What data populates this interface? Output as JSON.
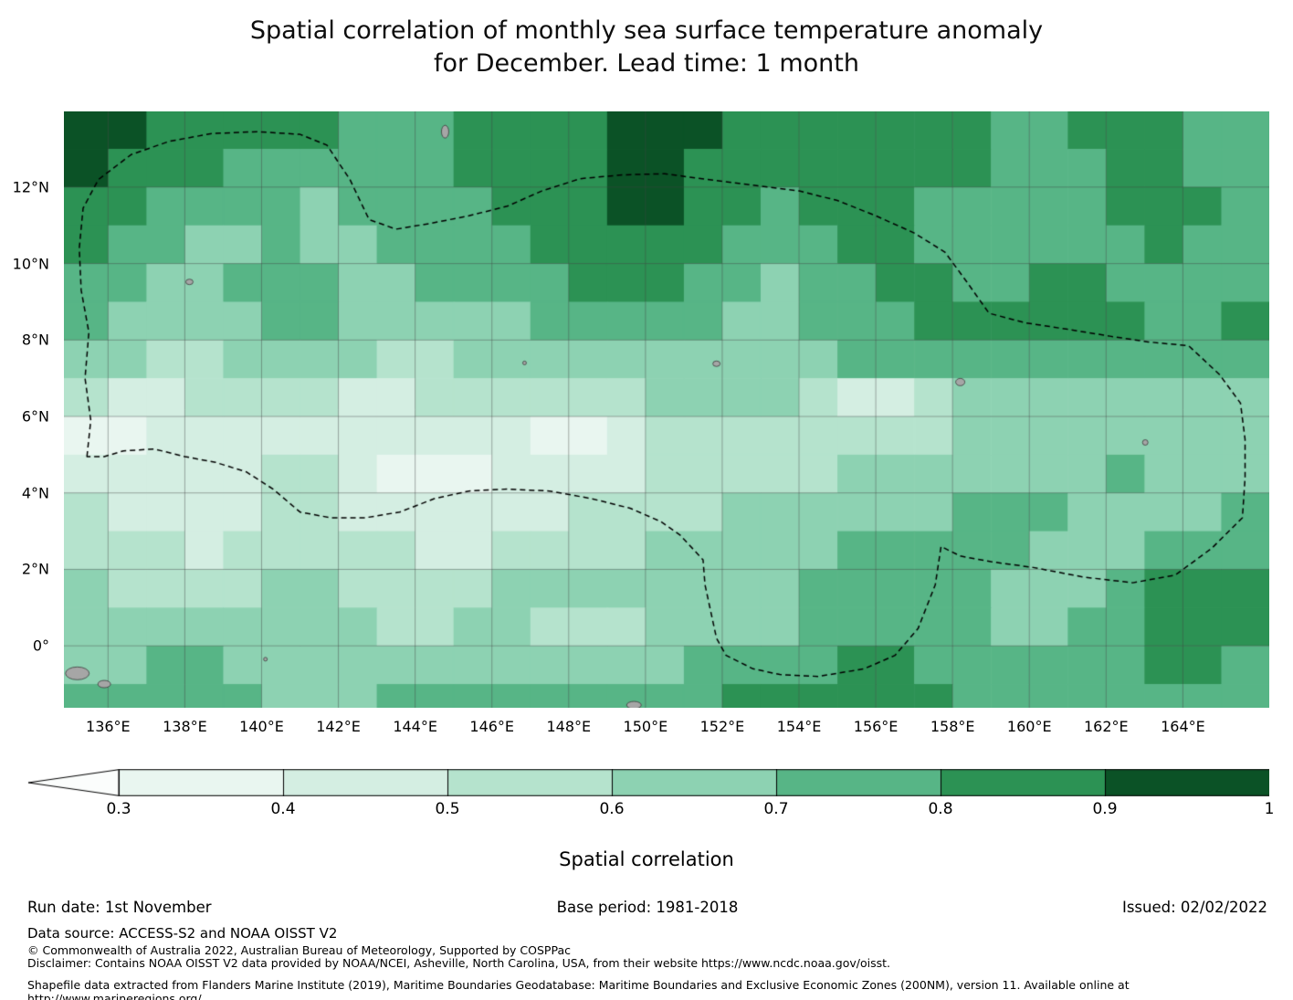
{
  "title": {
    "line1": "Spatial correlation of monthly sea surface temperature anomaly",
    "line2": "for December. Lead time: 1 month"
  },
  "footer": {
    "run_date": "Run date: 1st November",
    "base_period": "Base period: 1981-2018",
    "issued": "Issued: 02/02/2022",
    "data_source": "Data source: ACCESS-S2 and NOAA OISST V2",
    "copyright": "© Commonwealth of Australia 2022, Australian Bureau of Meteorology, Supported by COSPPac",
    "disclaimer": "Disclaimer: Contains NOAA OISST V2 data provided by NOAA/NCEI, Asheville, North Carolina, USA, from their website https://www.ncdc.noaa.gov/oisst.",
    "shapefile": "Shapefile data extracted from Flanders Marine Institute (2019), Maritime Boundaries Geodatabase: Maritime Boundaries and Exclusive Economic Zones (200NM), version 11. Available online at http://www.marineregions.org/."
  },
  "chart_data": {
    "type": "heatmap",
    "title": "Spatial correlation of monthly sea surface temperature anomaly for December. Lead time: 1 month",
    "xlabel": "",
    "ylabel": "",
    "extent": {
      "lon_min": 134.85,
      "lon_max": 166.25,
      "lat_min": -1.62,
      "lat_max": 13.98
    },
    "grid": {
      "lon_start": 135,
      "lat_start": 14,
      "cell_deg": 1
    },
    "grid_line_color": "rgba(70,70,70,0.55)",
    "x_ticks": [
      {
        "lon": 136,
        "label": "136°E"
      },
      {
        "lon": 138,
        "label": "138°E"
      },
      {
        "lon": 140,
        "label": "140°E"
      },
      {
        "lon": 142,
        "label": "142°E"
      },
      {
        "lon": 144,
        "label": "144°E"
      },
      {
        "lon": 146,
        "label": "146°E"
      },
      {
        "lon": 148,
        "label": "148°E"
      },
      {
        "lon": 150,
        "label": "150°E"
      },
      {
        "lon": 152,
        "label": "152°E"
      },
      {
        "lon": 154,
        "label": "154°E"
      },
      {
        "lon": 156,
        "label": "156°E"
      },
      {
        "lon": 158,
        "label": "158°E"
      },
      {
        "lon": 160,
        "label": "160°E"
      },
      {
        "lon": 162,
        "label": "162°E"
      },
      {
        "lon": 164,
        "label": "164°E"
      }
    ],
    "y_ticks": [
      {
        "lat": 12,
        "label": "12°N"
      },
      {
        "lat": 10,
        "label": "10°N"
      },
      {
        "lat": 8,
        "label": "8°N"
      },
      {
        "lat": 6,
        "label": "6°N"
      },
      {
        "lat": 4,
        "label": "4°N"
      },
      {
        "lat": 2,
        "label": "2°N"
      },
      {
        "lat": 0,
        "label": "0°"
      }
    ],
    "colorbar": {
      "label": "Spatial correlation",
      "ticks": [
        "0.3",
        "0.4",
        "0.5",
        "0.6",
        "0.7",
        "0.8",
        "0.9",
        "1"
      ],
      "tick_values": [
        0.3,
        0.4,
        0.5,
        0.6,
        0.7,
        0.8,
        0.9,
        1.0
      ],
      "below_color": "#fbfdfc",
      "segment_colors": [
        "#e9f6f0",
        "#d4eee2",
        "#b5e3cd",
        "#8dd2b2",
        "#57b586",
        "#2c9254",
        "#0b5226"
      ]
    },
    "values": [
      [
        0.95,
        0.95,
        0.85,
        0.85,
        0.85,
        0.85,
        0.85,
        0.75,
        0.75,
        0.75,
        0.85,
        0.85,
        0.85,
        0.85,
        0.95,
        0.95,
        0.95,
        0.85,
        0.85,
        0.85,
        0.85,
        0.85,
        0.85,
        0.85,
        0.75,
        0.75,
        0.85,
        0.85,
        0.85,
        0.75,
        0.75
      ],
      [
        0.95,
        0.85,
        0.85,
        0.85,
        0.75,
        0.75,
        0.75,
        0.75,
        0.75,
        0.75,
        0.85,
        0.85,
        0.85,
        0.85,
        0.95,
        0.95,
        0.85,
        0.85,
        0.85,
        0.85,
        0.85,
        0.85,
        0.85,
        0.85,
        0.75,
        0.75,
        0.75,
        0.85,
        0.85,
        0.75,
        0.75
      ],
      [
        0.85,
        0.85,
        0.75,
        0.75,
        0.75,
        0.75,
        0.65,
        0.75,
        0.75,
        0.75,
        0.75,
        0.85,
        0.85,
        0.85,
        0.95,
        0.95,
        0.85,
        0.85,
        0.75,
        0.85,
        0.85,
        0.85,
        0.75,
        0.75,
        0.75,
        0.75,
        0.75,
        0.85,
        0.85,
        0.85,
        0.75
      ],
      [
        0.85,
        0.75,
        0.75,
        0.65,
        0.65,
        0.75,
        0.65,
        0.65,
        0.75,
        0.75,
        0.75,
        0.75,
        0.85,
        0.85,
        0.85,
        0.85,
        0.85,
        0.75,
        0.75,
        0.75,
        0.85,
        0.85,
        0.75,
        0.75,
        0.75,
        0.75,
        0.75,
        0.75,
        0.85,
        0.75,
        0.75
      ],
      [
        0.75,
        0.75,
        0.65,
        0.65,
        0.75,
        0.75,
        0.75,
        0.65,
        0.65,
        0.75,
        0.75,
        0.75,
        0.75,
        0.85,
        0.85,
        0.85,
        0.75,
        0.75,
        0.65,
        0.75,
        0.75,
        0.85,
        0.85,
        0.75,
        0.75,
        0.85,
        0.85,
        0.75,
        0.75,
        0.75,
        0.75
      ],
      [
        0.75,
        0.65,
        0.65,
        0.65,
        0.65,
        0.75,
        0.75,
        0.65,
        0.65,
        0.65,
        0.65,
        0.65,
        0.75,
        0.75,
        0.75,
        0.75,
        0.75,
        0.65,
        0.65,
        0.75,
        0.75,
        0.75,
        0.85,
        0.85,
        0.85,
        0.85,
        0.85,
        0.85,
        0.75,
        0.75,
        0.85
      ],
      [
        0.65,
        0.65,
        0.55,
        0.55,
        0.65,
        0.65,
        0.65,
        0.65,
        0.55,
        0.55,
        0.65,
        0.65,
        0.65,
        0.65,
        0.65,
        0.65,
        0.65,
        0.65,
        0.65,
        0.65,
        0.75,
        0.75,
        0.75,
        0.75,
        0.75,
        0.75,
        0.75,
        0.75,
        0.75,
        0.75,
        0.75
      ],
      [
        0.55,
        0.45,
        0.45,
        0.55,
        0.55,
        0.55,
        0.55,
        0.45,
        0.45,
        0.55,
        0.55,
        0.55,
        0.55,
        0.55,
        0.55,
        0.65,
        0.65,
        0.65,
        0.65,
        0.55,
        0.45,
        0.45,
        0.55,
        0.65,
        0.65,
        0.65,
        0.65,
        0.65,
        0.65,
        0.65,
        0.65
      ],
      [
        0.35,
        0.35,
        0.45,
        0.45,
        0.45,
        0.45,
        0.45,
        0.45,
        0.45,
        0.45,
        0.45,
        0.45,
        0.35,
        0.35,
        0.45,
        0.55,
        0.55,
        0.55,
        0.55,
        0.55,
        0.55,
        0.55,
        0.55,
        0.65,
        0.65,
        0.65,
        0.65,
        0.65,
        0.65,
        0.65,
        0.65
      ],
      [
        0.45,
        0.45,
        0.45,
        0.45,
        0.45,
        0.55,
        0.55,
        0.45,
        0.35,
        0.35,
        0.35,
        0.45,
        0.45,
        0.45,
        0.45,
        0.55,
        0.55,
        0.55,
        0.55,
        0.55,
        0.65,
        0.65,
        0.65,
        0.65,
        0.65,
        0.65,
        0.65,
        0.75,
        0.65,
        0.65,
        0.65
      ],
      [
        0.55,
        0.45,
        0.45,
        0.45,
        0.45,
        0.55,
        0.55,
        0.45,
        0.45,
        0.45,
        0.45,
        0.45,
        0.45,
        0.55,
        0.55,
        0.55,
        0.55,
        0.65,
        0.65,
        0.65,
        0.65,
        0.65,
        0.65,
        0.75,
        0.75,
        0.75,
        0.65,
        0.65,
        0.65,
        0.65,
        0.75
      ],
      [
        0.55,
        0.55,
        0.55,
        0.45,
        0.55,
        0.55,
        0.55,
        0.55,
        0.55,
        0.45,
        0.45,
        0.55,
        0.55,
        0.55,
        0.55,
        0.65,
        0.65,
        0.65,
        0.65,
        0.65,
        0.75,
        0.75,
        0.75,
        0.75,
        0.75,
        0.65,
        0.65,
        0.65,
        0.75,
        0.75,
        0.75
      ],
      [
        0.65,
        0.55,
        0.55,
        0.55,
        0.55,
        0.65,
        0.65,
        0.55,
        0.55,
        0.55,
        0.55,
        0.65,
        0.65,
        0.65,
        0.65,
        0.65,
        0.65,
        0.65,
        0.65,
        0.75,
        0.75,
        0.75,
        0.75,
        0.75,
        0.65,
        0.65,
        0.65,
        0.75,
        0.85,
        0.85,
        0.85
      ],
      [
        0.65,
        0.65,
        0.65,
        0.65,
        0.65,
        0.65,
        0.65,
        0.65,
        0.55,
        0.55,
        0.65,
        0.65,
        0.55,
        0.55,
        0.55,
        0.65,
        0.65,
        0.65,
        0.65,
        0.75,
        0.75,
        0.75,
        0.75,
        0.75,
        0.65,
        0.65,
        0.75,
        0.75,
        0.85,
        0.85,
        0.85
      ],
      [
        0.65,
        0.65,
        0.75,
        0.75,
        0.65,
        0.65,
        0.65,
        0.65,
        0.65,
        0.65,
        0.65,
        0.65,
        0.65,
        0.65,
        0.65,
        0.65,
        0.75,
        0.75,
        0.75,
        0.75,
        0.85,
        0.85,
        0.75,
        0.75,
        0.75,
        0.75,
        0.75,
        0.75,
        0.85,
        0.85,
        0.75
      ],
      [
        0.75,
        0.75,
        0.75,
        0.75,
        0.75,
        0.65,
        0.65,
        0.65,
        0.75,
        0.75,
        0.75,
        0.75,
        0.75,
        0.75,
        0.75,
        0.75,
        0.75,
        0.85,
        0.85,
        0.85,
        0.85,
        0.85,
        0.85,
        0.75,
        0.75,
        0.75,
        0.75,
        0.75,
        0.75,
        0.75,
        0.75
      ]
    ],
    "eez_boundary": [
      [
        135.45,
        4.95
      ],
      [
        135.55,
        5.9
      ],
      [
        135.4,
        7.0
      ],
      [
        135.5,
        8.2
      ],
      [
        135.3,
        9.3
      ],
      [
        135.25,
        10.4
      ],
      [
        135.35,
        11.45
      ],
      [
        135.75,
        12.2
      ],
      [
        136.6,
        12.85
      ],
      [
        137.6,
        13.2
      ],
      [
        138.7,
        13.4
      ],
      [
        139.9,
        13.45
      ],
      [
        141.0,
        13.38
      ],
      [
        141.7,
        13.1
      ],
      [
        142.3,
        12.2
      ],
      [
        142.8,
        11.15
      ],
      [
        143.5,
        10.9
      ],
      [
        144.4,
        11.05
      ],
      [
        145.4,
        11.25
      ],
      [
        146.4,
        11.5
      ],
      [
        147.3,
        11.9
      ],
      [
        148.3,
        12.22
      ],
      [
        149.4,
        12.32
      ],
      [
        150.5,
        12.35
      ],
      [
        151.6,
        12.2
      ],
      [
        152.8,
        12.05
      ],
      [
        154.0,
        11.9
      ],
      [
        155.0,
        11.65
      ],
      [
        156.0,
        11.25
      ],
      [
        157.0,
        10.8
      ],
      [
        157.8,
        10.3
      ],
      [
        158.35,
        9.55
      ],
      [
        158.95,
        8.7
      ],
      [
        159.9,
        8.45
      ],
      [
        161.0,
        8.28
      ],
      [
        162.1,
        8.1
      ],
      [
        163.1,
        7.95
      ],
      [
        164.15,
        7.85
      ],
      [
        164.95,
        7.1
      ],
      [
        165.5,
        6.35
      ],
      [
        165.62,
        5.4
      ],
      [
        165.62,
        4.4
      ],
      [
        165.55,
        3.35
      ],
      [
        164.75,
        2.55
      ],
      [
        163.8,
        1.85
      ],
      [
        162.7,
        1.65
      ],
      [
        161.4,
        1.8
      ],
      [
        160.1,
        2.05
      ],
      [
        159.0,
        2.2
      ],
      [
        158.2,
        2.35
      ],
      [
        157.7,
        2.6
      ],
      [
        157.55,
        1.6
      ],
      [
        157.1,
        0.45
      ],
      [
        156.5,
        -0.25
      ],
      [
        155.7,
        -0.6
      ],
      [
        154.5,
        -0.8
      ],
      [
        153.5,
        -0.75
      ],
      [
        152.8,
        -0.6
      ],
      [
        152.1,
        -0.25
      ],
      [
        151.85,
        0.2
      ],
      [
        151.7,
        0.9
      ],
      [
        151.55,
        1.6
      ],
      [
        151.5,
        2.25
      ],
      [
        150.9,
        2.9
      ],
      [
        150.4,
        3.25
      ],
      [
        149.6,
        3.6
      ],
      [
        148.6,
        3.85
      ],
      [
        147.5,
        4.05
      ],
      [
        146.4,
        4.1
      ],
      [
        145.4,
        4.05
      ],
      [
        144.5,
        3.85
      ],
      [
        143.6,
        3.5
      ],
      [
        142.7,
        3.35
      ],
      [
        141.8,
        3.35
      ],
      [
        141.0,
        3.5
      ],
      [
        140.3,
        4.1
      ],
      [
        139.6,
        4.55
      ],
      [
        138.8,
        4.8
      ],
      [
        138.0,
        4.95
      ],
      [
        137.2,
        5.15
      ],
      [
        136.4,
        5.1
      ],
      [
        135.9,
        4.95
      ]
    ],
    "islands": [
      [
        138.12,
        9.52,
        4,
        3
      ],
      [
        144.78,
        13.45,
        4,
        7
      ],
      [
        151.85,
        7.38,
        4,
        3
      ],
      [
        158.2,
        6.9,
        5,
        4
      ],
      [
        163.02,
        5.32,
        3,
        3
      ],
      [
        146.85,
        7.4,
        2,
        2
      ],
      [
        135.2,
        -0.72,
        13,
        7
      ],
      [
        135.9,
        -1.0,
        7,
        4
      ],
      [
        149.7,
        -1.55,
        8,
        4
      ],
      [
        140.1,
        -0.35,
        2,
        2
      ]
    ]
  }
}
